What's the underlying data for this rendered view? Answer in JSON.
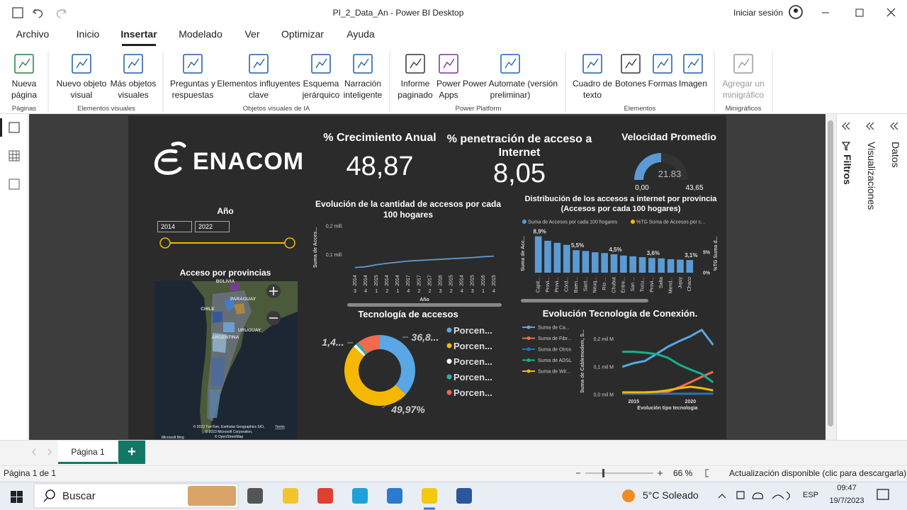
{
  "titlebar": {
    "title": "PI_2_Data_An - Power BI Desktop",
    "signin": "Iniciar sesión"
  },
  "menu": [
    "Archivo",
    "Inicio",
    "Insertar",
    "Modelado",
    "Ver",
    "Optimizar",
    "Ayuda"
  ],
  "ribbon": [
    {
      "group": "Páginas",
      "items": [
        "Nueva página"
      ]
    },
    {
      "group": "Elementos visuales",
      "items": [
        "Nuevo objeto visual",
        "Más objetos visuales"
      ]
    },
    {
      "group": "Objetos visuales de IA",
      "items": [
        "Preguntas y respuestas",
        "Elementos influyentes clave",
        "Esquema jerárquico",
        "Narración inteligente"
      ]
    },
    {
      "group": "Power Platform",
      "items": [
        "Informe paginado",
        "Power Apps",
        "Power Automate (versión preliminar)"
      ]
    },
    {
      "group": "Elementos",
      "items": [
        "Cuadro de texto",
        "Botones",
        "Formas",
        "Imagen"
      ]
    },
    {
      "group": "Minigráficos",
      "items": [
        "Agregar un minigráfico"
      ]
    }
  ],
  "side_panes": [
    "Filtros",
    "Visualizaciones",
    "Datos"
  ],
  "report": {
    "logo": "ENACOM",
    "kpis": [
      {
        "title": "% Crecimiento Anual",
        "value": "48,87"
      },
      {
        "title": "% penetración de acceso a Internet",
        "value": "8,05"
      }
    ],
    "gauge": {
      "title": "Velocidad Promedio",
      "value": 21.83,
      "min": {
        "value": 0,
        "label": "0,00"
      },
      "max": {
        "value": 43.65,
        "label": "43,65"
      },
      "color": "#5b9bd5"
    },
    "slicer": {
      "title": "Año",
      "from": "2014",
      "to": "2022",
      "color": "#f5b800"
    },
    "map": {
      "title": "Acceso por provincias",
      "labels": [
        "BOLIVIA",
        "PARAGUAY",
        "CHILE",
        "URUGUAY",
        "ARGENTINA"
      ],
      "credits": [
        "© 2023 TomTom, Earthstar Geographics SIO,",
        "© 2023 Microsoft Corporation,",
        "© OpenStreetMap"
      ],
      "terms": "Terms",
      "brand": "Microsoft Bing"
    },
    "charts": [
      {
        "type": "line",
        "title": "Evolución de la cantidad de accesos por cada 100 hogares",
        "ylabel": "Suma de Acces...",
        "xlabel": "Año",
        "categories": [
          "2014",
          "2014",
          "2015",
          "2014",
          "2014",
          "2017",
          "2017",
          "2017",
          "2016",
          "2015",
          "2014",
          "2015",
          "2016",
          "2015"
        ],
        "quarters": [
          "3",
          "4",
          "1",
          "2",
          "1",
          "4",
          "2",
          "2",
          "3",
          "2",
          "4",
          "3",
          "1",
          "4"
        ],
        "values": [
          0.055,
          0.058,
          0.065,
          0.07,
          0.074,
          0.078,
          0.08,
          0.082,
          0.084,
          0.086,
          0.088,
          0.09,
          0.093,
          0.095
        ],
        "color": "#5b9bd5",
        "ylim": [
          0,
          0.25
        ],
        "yticks": [
          {
            "value": 0.1,
            "label": "0,1 mill."
          },
          {
            "value": 0.2,
            "label": "0,2 mill."
          }
        ]
      },
      {
        "type": "bar",
        "title": "Distribución de los accesos a internet por provincia (Accesos por cada 100 hogares)",
        "ylabel": "Suma de Acc...",
        "y2label": "%TG Suma d...",
        "categories": [
          "Capit...",
          "Provi...",
          "Provi...",
          "Córd...",
          "Buen...",
          "Sant...",
          "Neuq...",
          "Río ...",
          "Chubut",
          "Entre...",
          "San ...",
          "Tucu...",
          "Provi...",
          "Salta",
          "Mend...",
          "Jujuy",
          "Chaco"
        ],
        "series": [
          {
            "name": "Suma de Accesos por cada 100 hogares",
            "color": "#5b9bd5",
            "axis": "y2",
            "values": [
              8.9,
              7.8,
              7.3,
              6.8,
              5.5,
              5.3,
              5.0,
              4.8,
              4.5,
              4.2,
              4.0,
              3.8,
              3.6,
              3.5,
              3.3,
              3.2,
              3.1
            ],
            "value_labels": [
              "8,9%",
              null,
              null,
              null,
              "5,5%",
              null,
              null,
              null,
              "4,5%",
              null,
              null,
              null,
              "3,6%",
              null,
              null,
              null,
              "3,1%"
            ]
          },
          {
            "name": "%TG Suma de Accesos por c...",
            "color": "#f5b800"
          }
        ],
        "y2lim": [
          0,
          9
        ],
        "y2ticks": [
          {
            "value": 0,
            "label": "0%"
          },
          {
            "value": 5,
            "label": "5%"
          }
        ]
      },
      {
        "type": "donut",
        "title": "Tecnología de accesos",
        "categories": [
          "Porcen...",
          "Porcen...",
          "Porcen...",
          "Porcen...",
          "Porcen..."
        ],
        "values": [
          36.8,
          49.97,
          1.4,
          1.5,
          10.33
        ],
        "value_labels": [
          "36,8...",
          "49,97%",
          "1,4...",
          null,
          null
        ],
        "colors": [
          "#5aa7e6",
          "#f5b800",
          "#ffffff",
          "#2bb3a0",
          "#f26b4f"
        ]
      },
      {
        "type": "line",
        "title": "Evolución Tecnología de Conexión.",
        "ylabel": "Suma de Cablemodem, S...",
        "xlabel": "Evolución tipo tecnologia",
        "x": [
          2014,
          2015,
          2016,
          2017,
          2018,
          2019,
          2020,
          2021,
          2022
        ],
        "xlim": [
          2013.8,
          2022.1
        ],
        "xticks": [
          2015,
          2020
        ],
        "ylim": [
          0,
          0.24
        ],
        "yticks": [
          {
            "value": 0,
            "label": "0,0 mil M"
          },
          {
            "value": 0.1,
            "label": "0,1 mil M"
          },
          {
            "value": 0.2,
            "label": "0,2 mil M"
          }
        ],
        "series": [
          {
            "name": "Suma de Ca...",
            "color": "#5aa7e6",
            "values": [
              0.1,
              0.113,
              0.121,
              0.146,
              0.172,
              0.192,
              0.21,
              0.233,
              0.179
            ]
          },
          {
            "name": "Suma de Fibr...",
            "color": "#f26b4f",
            "values": [
              0.005,
              0.005,
              0.005,
              0.008,
              0.01,
              0.026,
              0.044,
              0.064,
              0.082
            ]
          },
          {
            "name": "Suma de Otros",
            "color": "#2f6fb5",
            "values": [
              0.003,
              0.003,
              0.003,
              0.003,
              0.003,
              0.003,
              0.003,
              0.003,
              0.003
            ]
          },
          {
            "name": "Suma de ADSL",
            "color": "#18b08a",
            "values": [
              0.154,
              0.154,
              0.151,
              0.146,
              0.133,
              0.108,
              0.09,
              0.074,
              0.044
            ]
          },
          {
            "name": "Suma de Wir...",
            "color": "#f5b800",
            "values": [
              0.008,
              0.008,
              0.008,
              0.01,
              0.015,
              0.023,
              0.028,
              0.023,
              0.015
            ]
          }
        ]
      }
    ]
  },
  "page_tabs": {
    "tab": "Página 1",
    "add": "+"
  },
  "statusbar": {
    "page": "Página 1 de 1",
    "zoom": "66 %",
    "update": "Actualización disponible (clic para descargarla)"
  },
  "taskbar": {
    "search": "Buscar",
    "weather": "5°C Soleado",
    "language": "ESP",
    "time": "09:47",
    "date": "19/7/2023"
  }
}
